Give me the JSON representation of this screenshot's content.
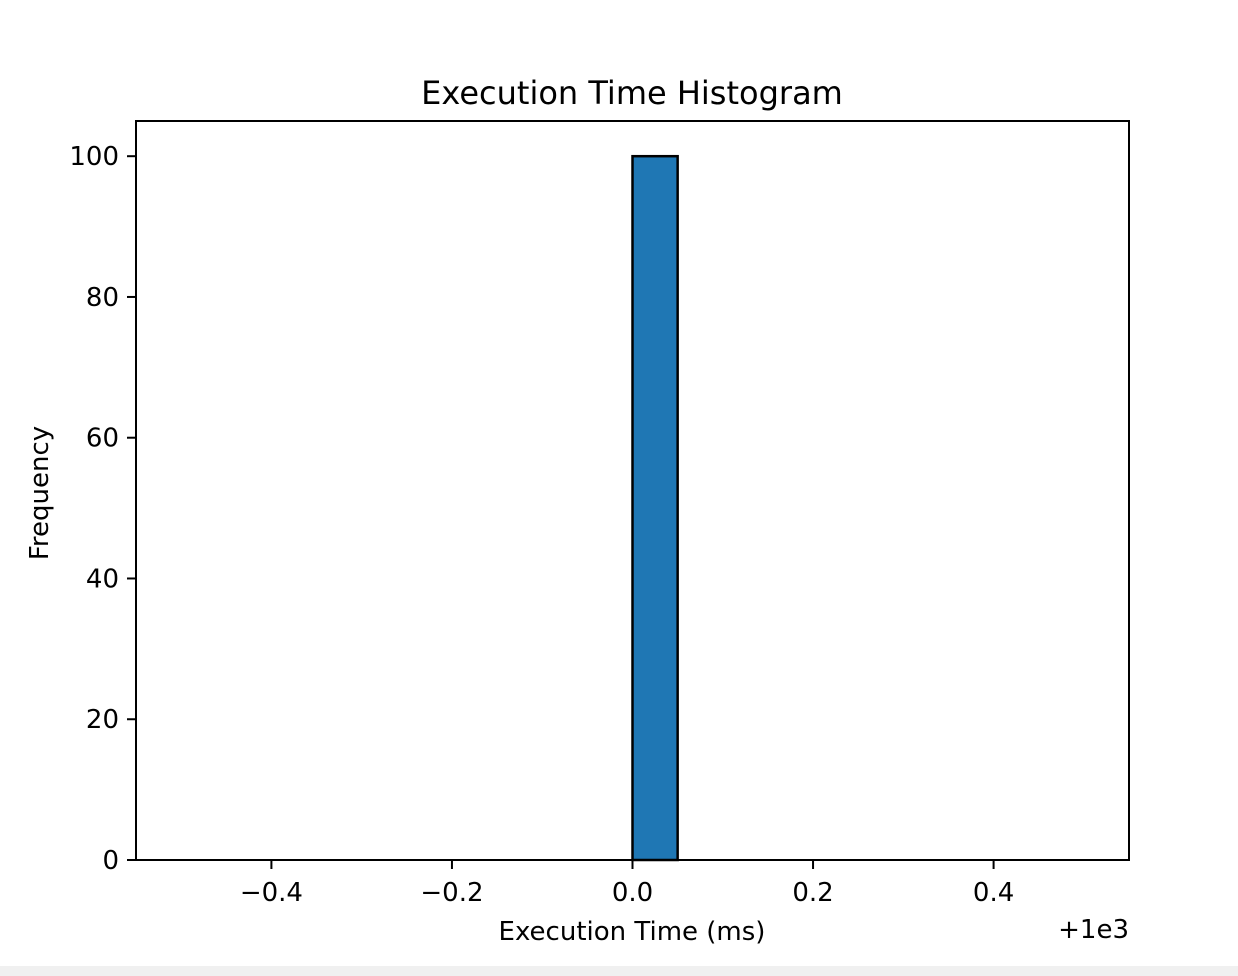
{
  "chart_data": {
    "type": "bar",
    "title": "Execution Time Histogram",
    "xlabel": "Execution Time (ms)",
    "ylabel": "Frequency",
    "x_offset_label": "+1e3",
    "xlim": [
      -0.55,
      0.55
    ],
    "ylim": [
      0,
      105
    ],
    "x_ticks": [
      -0.4,
      -0.2,
      0.0,
      0.2,
      0.4
    ],
    "x_tick_labels": [
      "−0.4",
      "−0.2",
      "0.0",
      "0.2",
      "0.4"
    ],
    "y_ticks": [
      0,
      20,
      40,
      60,
      80,
      100
    ],
    "y_tick_labels": [
      "0",
      "20",
      "40",
      "60",
      "80",
      "100"
    ],
    "bins": [
      {
        "x_start": 0.0,
        "x_end": 0.05,
        "count": 100
      }
    ],
    "grid": false,
    "bar_color": "#1f77b4",
    "edge_color": "#000000"
  }
}
